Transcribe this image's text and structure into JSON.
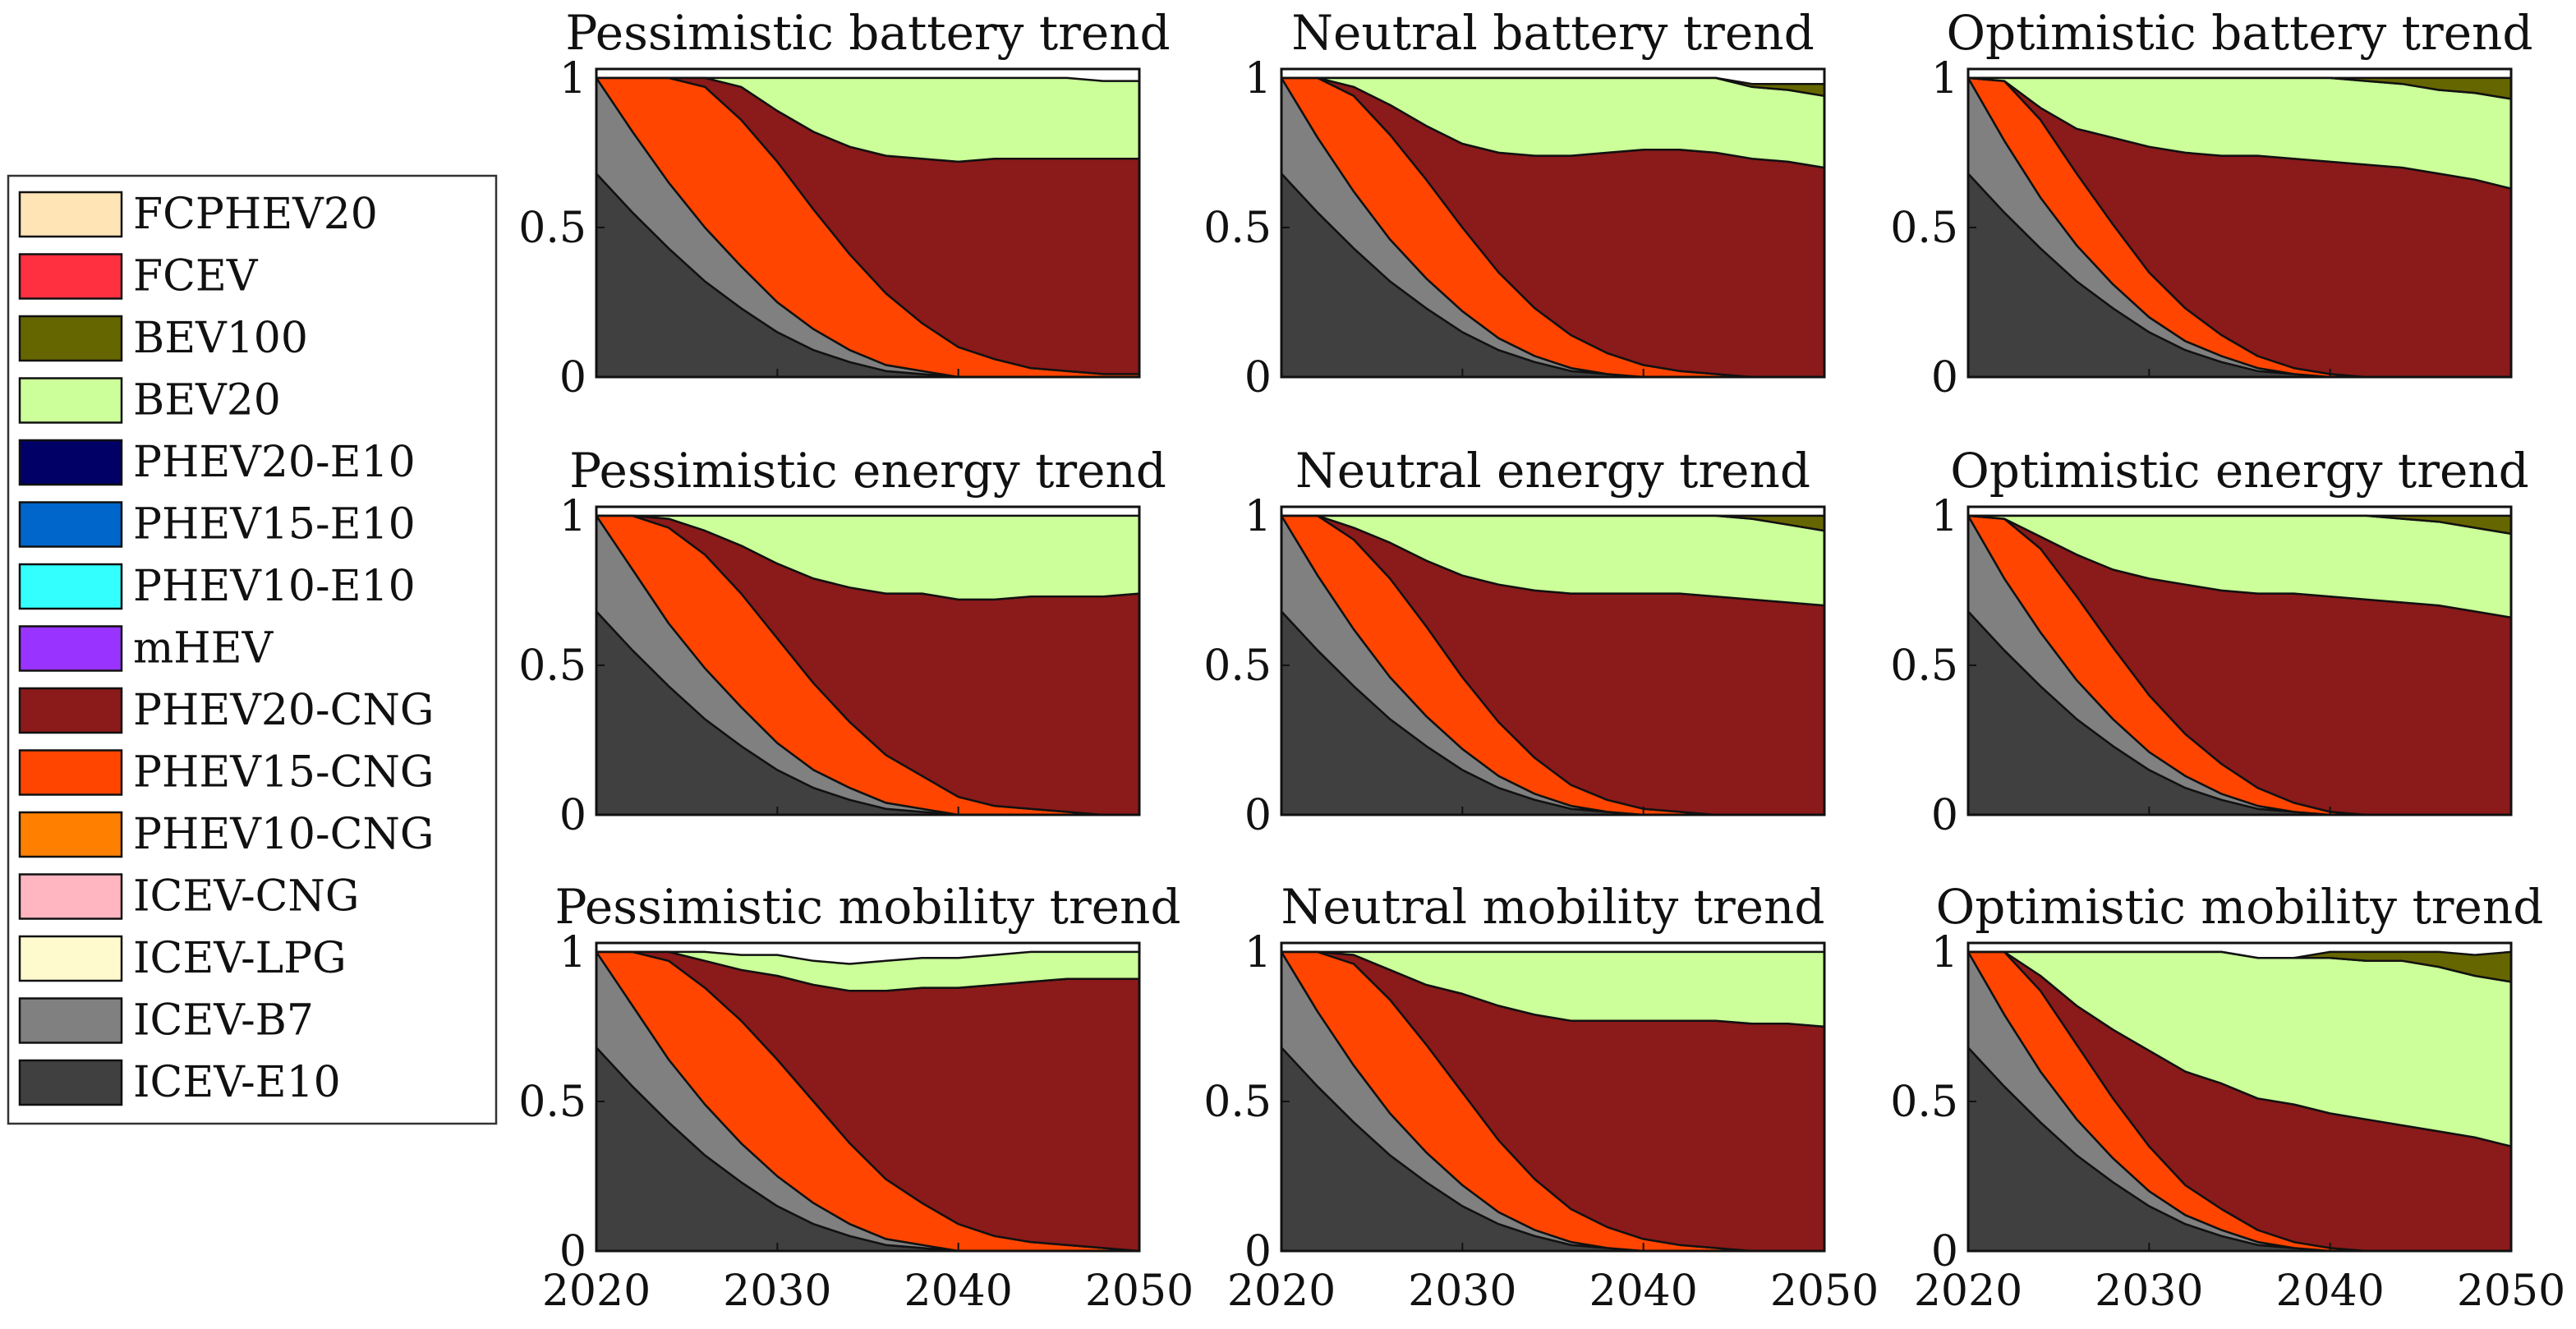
{
  "chart_data": {
    "type": "area",
    "stacking": "normalized-share",
    "x": [
      2020,
      2022,
      2024,
      2026,
      2028,
      2030,
      2032,
      2034,
      2036,
      2038,
      2040,
      2042,
      2044,
      2046,
      2048,
      2050
    ],
    "xticks": [
      2020,
      2030,
      2040,
      2050
    ],
    "yticks": [
      0,
      0.5,
      1
    ],
    "ytick_labels": [
      "0",
      "0.5",
      "1"
    ],
    "ylim": [
      0,
      1.03
    ],
    "xlim": [
      2020,
      2050
    ],
    "legend": {
      "placement": "left",
      "entries": [
        {
          "name": "FCPHEV20",
          "color": "#FFE4B5"
        },
        {
          "name": "FCEV",
          "color": "#FF3040"
        },
        {
          "name": "BEV100",
          "color": "#666600"
        },
        {
          "name": "BEV20",
          "color": "#CCFF99"
        },
        {
          "name": "PHEV20-E10",
          "color": "#000066"
        },
        {
          "name": "PHEV15-E10",
          "color": "#0066CC"
        },
        {
          "name": "PHEV10-E10",
          "color": "#33FFFF"
        },
        {
          "name": "mHEV",
          "color": "#9933FF"
        },
        {
          "name": "PHEV20-CNG",
          "color": "#8B1A1A"
        },
        {
          "name": "PHEV15-CNG",
          "color": "#FF4500"
        },
        {
          "name": "PHEV10-CNG",
          "color": "#FF8000"
        },
        {
          "name": "ICEV-CNG",
          "color": "#FFB6C1"
        },
        {
          "name": "ICEV-LPG",
          "color": "#FFFACD"
        },
        {
          "name": "ICEV-B7",
          "color": "#808080"
        },
        {
          "name": "ICEV-E10",
          "color": "#404040"
        }
      ]
    },
    "panels": [
      {
        "title": "Pessimistic battery trend",
        "series": {
          "ICEV-E10": [
            0.68,
            0.55,
            0.43,
            0.32,
            0.23,
            0.15,
            0.09,
            0.05,
            0.02,
            0.01,
            0.0,
            0,
            0,
            0,
            0,
            0
          ],
          "ICEV-B7": [
            0.34,
            0.27,
            0.22,
            0.18,
            0.14,
            0.1,
            0.07,
            0.04,
            0.02,
            0.01,
            0.0,
            0,
            0,
            0,
            0,
            0
          ],
          "PHEV15-CNG": [
            0.0,
            0.2,
            0.36,
            0.47,
            0.49,
            0.47,
            0.4,
            0.32,
            0.24,
            0.16,
            0.1,
            0.06,
            0.03,
            0.02,
            0.01,
            0.01
          ],
          "PHEV20-CNG": [
            0.0,
            0.0,
            0.0,
            0.05,
            0.11,
            0.17,
            0.26,
            0.36,
            0.46,
            0.55,
            0.62,
            0.67,
            0.7,
            0.71,
            0.72,
            0.72
          ],
          "BEV20": [
            0.0,
            0.0,
            0.01,
            0.02,
            0.05,
            0.12,
            0.18,
            0.23,
            0.26,
            0.27,
            0.28,
            0.27,
            0.27,
            0.27,
            0.26,
            0.26
          ],
          "BEV100": [
            0,
            0,
            0,
            0,
            0,
            0,
            0,
            0,
            0,
            0,
            0,
            0,
            0,
            0,
            0.0,
            0.0
          ]
        }
      },
      {
        "title": "Neutral battery trend",
        "series": {
          "ICEV-E10": [
            0.68,
            0.55,
            0.43,
            0.32,
            0.23,
            0.15,
            0.09,
            0.05,
            0.02,
            0.01,
            0.0,
            0,
            0,
            0,
            0,
            0
          ],
          "ICEV-B7": [
            0.34,
            0.25,
            0.19,
            0.14,
            0.1,
            0.07,
            0.04,
            0.02,
            0.01,
            0.0,
            0,
            0,
            0,
            0,
            0,
            0
          ],
          "PHEV15-CNG": [
            0.0,
            0.2,
            0.32,
            0.35,
            0.33,
            0.28,
            0.22,
            0.16,
            0.11,
            0.07,
            0.04,
            0.02,
            0.01,
            0.0,
            0,
            0
          ],
          "PHEV20-CNG": [
            0.0,
            0.0,
            0.03,
            0.1,
            0.18,
            0.28,
            0.4,
            0.51,
            0.6,
            0.67,
            0.72,
            0.74,
            0.74,
            0.73,
            0.72,
            0.7
          ],
          "BEV20": [
            0.0,
            0.02,
            0.06,
            0.11,
            0.18,
            0.24,
            0.26,
            0.27,
            0.27,
            0.27,
            0.26,
            0.26,
            0.25,
            0.24,
            0.24,
            0.24
          ],
          "BEV100": [
            0,
            0,
            0,
            0,
            0,
            0,
            0,
            0,
            0,
            0,
            0,
            0,
            0.0,
            0.01,
            0.02,
            0.04
          ]
        }
      },
      {
        "title": "Optimistic battery trend",
        "series": {
          "ICEV-E10": [
            0.68,
            0.55,
            0.43,
            0.32,
            0.23,
            0.15,
            0.09,
            0.05,
            0.02,
            0.01,
            0.0,
            0,
            0,
            0,
            0,
            0
          ],
          "ICEV-B7": [
            0.34,
            0.24,
            0.17,
            0.12,
            0.08,
            0.05,
            0.03,
            0.02,
            0.01,
            0.0,
            0,
            0,
            0,
            0,
            0,
            0
          ],
          "PHEV15-CNG": [
            0.0,
            0.2,
            0.26,
            0.24,
            0.2,
            0.15,
            0.11,
            0.07,
            0.04,
            0.02,
            0.01,
            0.0,
            0,
            0,
            0,
            0
          ],
          "PHEV20-CNG": [
            0.0,
            0.0,
            0.04,
            0.15,
            0.29,
            0.42,
            0.52,
            0.6,
            0.67,
            0.7,
            0.71,
            0.71,
            0.7,
            0.68,
            0.66,
            0.63
          ],
          "BEV20": [
            0.0,
            0.03,
            0.12,
            0.19,
            0.22,
            0.24,
            0.27,
            0.28,
            0.28,
            0.29,
            0.29,
            0.28,
            0.28,
            0.28,
            0.29,
            0.3
          ],
          "BEV100": [
            0,
            0,
            0,
            0,
            0,
            0,
            0,
            0,
            0,
            0,
            0.01,
            0.03,
            0.05,
            0.07,
            0.08,
            0.1
          ]
        }
      },
      {
        "title": "Pessimistic energy trend",
        "series": {
          "ICEV-E10": [
            0.68,
            0.55,
            0.43,
            0.32,
            0.23,
            0.15,
            0.09,
            0.05,
            0.02,
            0.01,
            0.0,
            0,
            0,
            0,
            0,
            0
          ],
          "ICEV-B7": [
            0.34,
            0.27,
            0.21,
            0.17,
            0.13,
            0.09,
            0.06,
            0.04,
            0.02,
            0.01,
            0.0,
            0,
            0,
            0,
            0,
            0
          ],
          "PHEV15-CNG": [
            0.0,
            0.2,
            0.32,
            0.38,
            0.38,
            0.35,
            0.29,
            0.22,
            0.16,
            0.11,
            0.06,
            0.03,
            0.02,
            0.01,
            0.0,
            0
          ],
          "PHEV20-CNG": [
            0.0,
            0.0,
            0.03,
            0.08,
            0.16,
            0.25,
            0.35,
            0.45,
            0.54,
            0.61,
            0.66,
            0.69,
            0.71,
            0.72,
            0.73,
            0.74
          ],
          "BEV20": [
            0.0,
            0.0,
            0.03,
            0.07,
            0.12,
            0.18,
            0.23,
            0.26,
            0.28,
            0.29,
            0.29,
            0.29,
            0.28,
            0.28,
            0.28,
            0.27
          ],
          "BEV100": [
            0,
            0,
            0,
            0,
            0,
            0,
            0,
            0,
            0,
            0,
            0,
            0,
            0,
            0,
            0,
            0
          ]
        }
      },
      {
        "title": "Neutral energy trend",
        "series": {
          "ICEV-E10": [
            0.68,
            0.55,
            0.43,
            0.32,
            0.23,
            0.15,
            0.09,
            0.05,
            0.02,
            0.01,
            0.0,
            0,
            0,
            0,
            0,
            0
          ],
          "ICEV-B7": [
            0.34,
            0.25,
            0.19,
            0.14,
            0.1,
            0.07,
            0.04,
            0.02,
            0.01,
            0.0,
            0,
            0,
            0,
            0,
            0,
            0
          ],
          "PHEV15-CNG": [
            0.0,
            0.2,
            0.3,
            0.33,
            0.3,
            0.24,
            0.18,
            0.12,
            0.07,
            0.04,
            0.02,
            0.01,
            0.0,
            0,
            0,
            0
          ],
          "PHEV20-CNG": [
            0.0,
            0.0,
            0.04,
            0.12,
            0.22,
            0.34,
            0.46,
            0.56,
            0.64,
            0.69,
            0.72,
            0.73,
            0.73,
            0.72,
            0.71,
            0.7
          ],
          "BEV20": [
            0.0,
            0.02,
            0.06,
            0.11,
            0.17,
            0.22,
            0.25,
            0.27,
            0.28,
            0.28,
            0.28,
            0.28,
            0.28,
            0.27,
            0.26,
            0.25
          ],
          "BEV100": [
            0,
            0,
            0,
            0,
            0,
            0,
            0,
            0,
            0,
            0,
            0,
            0,
            0.0,
            0.02,
            0.04,
            0.06
          ]
        }
      },
      {
        "title": "Optimistic energy trend",
        "series": {
          "ICEV-E10": [
            0.68,
            0.55,
            0.43,
            0.32,
            0.23,
            0.15,
            0.09,
            0.05,
            0.02,
            0.01,
            0.0,
            0,
            0,
            0,
            0,
            0
          ],
          "ICEV-B7": [
            0.34,
            0.24,
            0.18,
            0.13,
            0.09,
            0.06,
            0.04,
            0.02,
            0.01,
            0.0,
            0,
            0,
            0,
            0,
            0,
            0
          ],
          "PHEV15-CNG": [
            0.0,
            0.2,
            0.28,
            0.28,
            0.24,
            0.19,
            0.14,
            0.1,
            0.06,
            0.03,
            0.01,
            0.0,
            0,
            0,
            0,
            0
          ],
          "PHEV20-CNG": [
            0.0,
            0.0,
            0.04,
            0.14,
            0.26,
            0.39,
            0.5,
            0.58,
            0.65,
            0.7,
            0.72,
            0.72,
            0.71,
            0.7,
            0.68,
            0.66
          ],
          "BEV20": [
            0.0,
            0.03,
            0.1,
            0.16,
            0.21,
            0.24,
            0.26,
            0.27,
            0.28,
            0.28,
            0.28,
            0.28,
            0.28,
            0.28,
            0.28,
            0.28
          ],
          "BEV100": [
            0,
            0,
            0,
            0,
            0,
            0,
            0,
            0,
            0,
            0,
            0.0,
            0.02,
            0.04,
            0.06,
            0.08,
            0.1
          ]
        }
      },
      {
        "title": "Pessimistic mobility trend",
        "series": {
          "ICEV-E10": [
            0.68,
            0.55,
            0.43,
            0.32,
            0.23,
            0.15,
            0.09,
            0.05,
            0.02,
            0.01,
            0.0,
            0,
            0,
            0,
            0,
            0
          ],
          "ICEV-B7": [
            0.34,
            0.27,
            0.21,
            0.17,
            0.13,
            0.1,
            0.07,
            0.04,
            0.02,
            0.01,
            0.0,
            0,
            0,
            0,
            0,
            0
          ],
          "PHEV15-CNG": [
            0.0,
            0.21,
            0.33,
            0.39,
            0.41,
            0.39,
            0.34,
            0.27,
            0.2,
            0.14,
            0.09,
            0.05,
            0.03,
            0.02,
            0.01,
            0.0
          ],
          "PHEV20-CNG": [
            0.0,
            0.0,
            0.04,
            0.09,
            0.17,
            0.28,
            0.39,
            0.51,
            0.63,
            0.72,
            0.79,
            0.84,
            0.87,
            0.89,
            0.9,
            0.91
          ],
          "BEV20": [
            0.0,
            0.0,
            0.01,
            0.03,
            0.05,
            0.07,
            0.08,
            0.09,
            0.1,
            0.1,
            0.1,
            0.1,
            0.1,
            0.1,
            0.1,
            0.1
          ],
          "BEV100": [
            0,
            0,
            0,
            0,
            0,
            0,
            0,
            0,
            0,
            0,
            0,
            0,
            0,
            0,
            0,
            0
          ]
        }
      },
      {
        "title": "Neutral mobility trend",
        "series": {
          "ICEV-E10": [
            0.68,
            0.55,
            0.43,
            0.32,
            0.23,
            0.15,
            0.09,
            0.05,
            0.02,
            0.01,
            0.0,
            0,
            0,
            0,
            0,
            0
          ],
          "ICEV-B7": [
            0.34,
            0.25,
            0.19,
            0.14,
            0.1,
            0.07,
            0.04,
            0.02,
            0.01,
            0.0,
            0,
            0,
            0,
            0,
            0,
            0
          ],
          "PHEV15-CNG": [
            0.0,
            0.21,
            0.34,
            0.38,
            0.36,
            0.31,
            0.24,
            0.17,
            0.11,
            0.07,
            0.04,
            0.02,
            0.01,
            0.0,
            0,
            0
          ],
          "PHEV20-CNG": [
            0.0,
            0.0,
            0.03,
            0.1,
            0.2,
            0.33,
            0.45,
            0.55,
            0.63,
            0.69,
            0.73,
            0.75,
            0.76,
            0.76,
            0.76,
            0.75
          ],
          "BEV20": [
            0.0,
            0.0,
            0.04,
            0.1,
            0.16,
            0.2,
            0.23,
            0.24,
            0.24,
            0.24,
            0.23,
            0.23,
            0.23,
            0.24,
            0.24,
            0.25
          ],
          "BEV100": [
            0,
            0,
            0,
            0,
            0,
            0,
            0,
            0,
            0,
            0,
            0,
            0,
            0,
            0,
            0.0,
            0.01
          ]
        }
      },
      {
        "title": "Optimistic mobility trend",
        "series": {
          "ICEV-E10": [
            0.68,
            0.55,
            0.43,
            0.32,
            0.23,
            0.15,
            0.09,
            0.05,
            0.02,
            0.01,
            0.0,
            0,
            0,
            0,
            0,
            0
          ],
          "ICEV-B7": [
            0.34,
            0.24,
            0.17,
            0.12,
            0.08,
            0.05,
            0.03,
            0.02,
            0.01,
            0.0,
            0,
            0,
            0,
            0,
            0,
            0
          ],
          "PHEV15-CNG": [
            0.0,
            0.22,
            0.27,
            0.25,
            0.2,
            0.15,
            0.1,
            0.07,
            0.04,
            0.02,
            0.01,
            0.0,
            0,
            0,
            0,
            0
          ],
          "PHEV20-CNG": [
            0.0,
            0.0,
            0.05,
            0.13,
            0.23,
            0.32,
            0.38,
            0.42,
            0.44,
            0.46,
            0.45,
            0.44,
            0.42,
            0.4,
            0.38,
            0.35
          ],
          "BEV20": [
            0.0,
            0.02,
            0.1,
            0.19,
            0.28,
            0.34,
            0.4,
            0.44,
            0.47,
            0.49,
            0.52,
            0.53,
            0.55,
            0.55,
            0.54,
            0.55
          ],
          "BEV100": [
            0,
            0,
            0,
            0,
            0,
            0,
            0,
            0,
            0,
            0,
            0.02,
            0.03,
            0.04,
            0.05,
            0.07,
            0.1
          ]
        }
      }
    ]
  }
}
